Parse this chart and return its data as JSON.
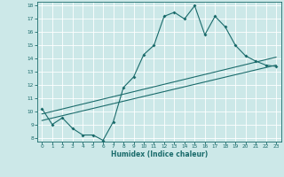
{
  "title": "",
  "xlabel": "Humidex (Indice chaleur)",
  "bg_color": "#cce8e8",
  "grid_color": "#ffffff",
  "line_color": "#1a6b6b",
  "xlim": [
    -0.5,
    23.5
  ],
  "ylim": [
    7.7,
    18.3
  ],
  "xticks": [
    0,
    1,
    2,
    3,
    4,
    5,
    6,
    7,
    8,
    9,
    10,
    11,
    12,
    13,
    14,
    15,
    16,
    17,
    18,
    19,
    20,
    21,
    22,
    23
  ],
  "yticks": [
    8,
    9,
    10,
    11,
    12,
    13,
    14,
    15,
    16,
    17,
    18
  ],
  "line1_x": [
    0,
    1,
    2,
    3,
    4,
    5,
    6,
    7,
    8,
    9,
    10,
    11,
    12,
    13,
    14,
    15,
    16,
    17,
    18,
    19,
    20,
    21,
    22,
    23
  ],
  "line1_y": [
    10.2,
    9.0,
    9.5,
    8.7,
    8.2,
    8.2,
    7.8,
    9.2,
    11.8,
    12.6,
    14.3,
    15.0,
    17.2,
    17.5,
    17.0,
    18.0,
    15.8,
    17.2,
    16.4,
    15.0,
    14.2,
    13.8,
    13.5,
    13.4
  ],
  "line2_x": [
    0,
    23
  ],
  "line2_y": [
    9.3,
    13.5
  ],
  "line3_x": [
    0,
    23
  ],
  "line3_y": [
    9.8,
    14.1
  ],
  "marker_size": 2.0,
  "linewidth": 0.8,
  "tick_fontsize": 4.2,
  "xlabel_fontsize": 5.5
}
